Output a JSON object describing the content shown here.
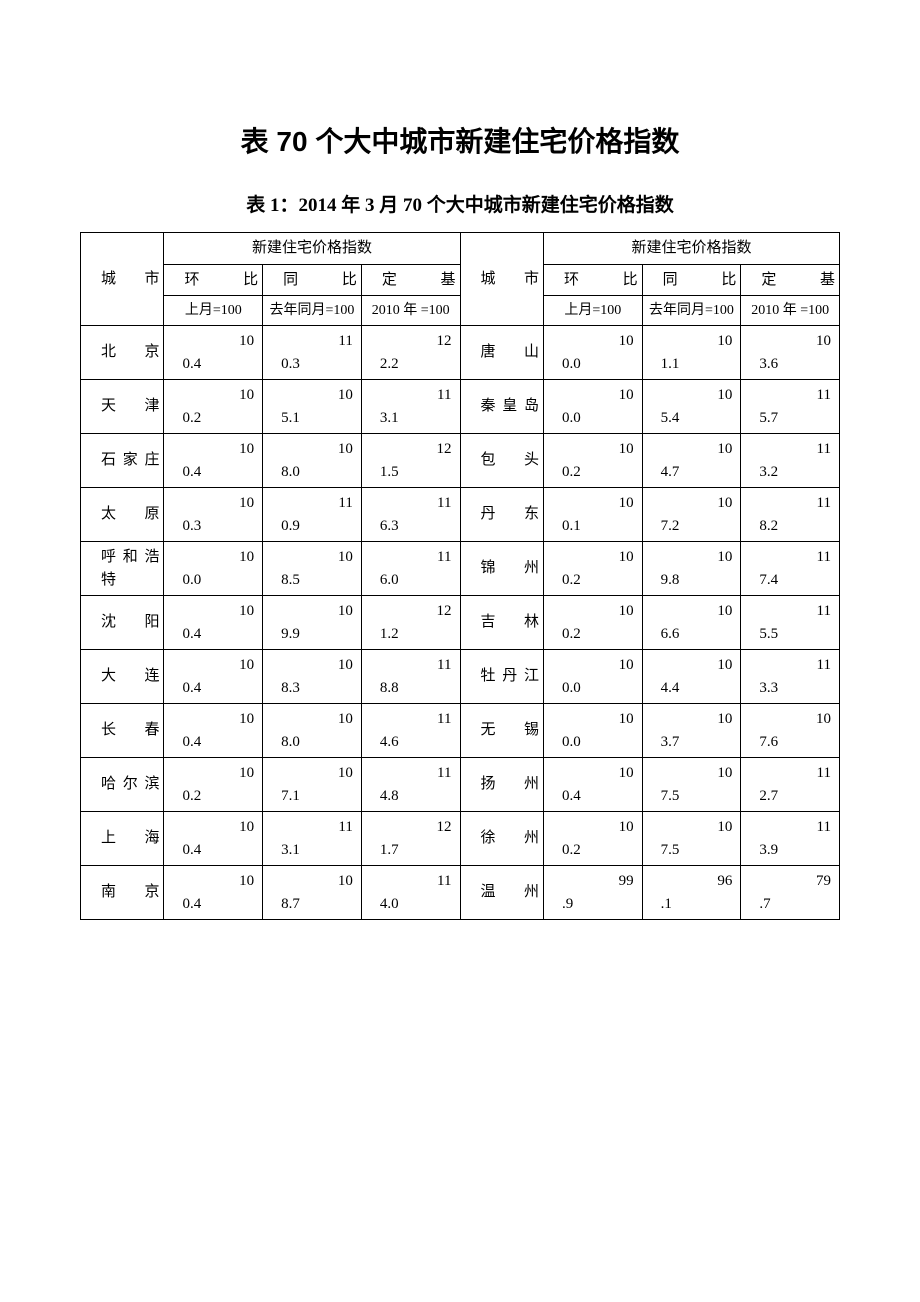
{
  "main_title": "表 70 个大中城市新建住宅价格指数",
  "sub_title": "表 1：2014 年 3 月 70 个大中城市新建住宅价格指数",
  "header": {
    "city_label": "城市",
    "group_label": "新建住宅价格指数",
    "col1": "环比",
    "col2": "同比",
    "col3": "定基",
    "sub1": "上月=100",
    "sub2": "去年同月=100",
    "sub3": "2010 年 =100"
  },
  "rows": [
    {
      "c1": "北 京",
      "v1_a": "10",
      "v1_b": "0.4",
      "v2_a": "11",
      "v2_b": "0.3",
      "v3_a": "12",
      "v3_b": "2.2",
      "c2": "唐 山",
      "v4_a": "10",
      "v4_b": "0.0",
      "v5_a": "10",
      "v5_b": "1.1",
      "v6_a": "10",
      "v6_b": "3.6"
    },
    {
      "c1": "天 津",
      "v1_a": "10",
      "v1_b": "0.2",
      "v2_a": "10",
      "v2_b": "5.1",
      "v3_a": "11",
      "v3_b": "3.1",
      "c2": "秦 皇 岛",
      "v4_a": "10",
      "v4_b": "0.0",
      "v5_a": "10",
      "v5_b": "5.4",
      "v6_a": "11",
      "v6_b": "5.7"
    },
    {
      "c1": "石 家 庄",
      "v1_a": "10",
      "v1_b": "0.4",
      "v2_a": "10",
      "v2_b": "8.0",
      "v3_a": "12",
      "v3_b": "1.5",
      "c2": "包 头",
      "v4_a": "10",
      "v4_b": "0.2",
      "v5_a": "10",
      "v5_b": "4.7",
      "v6_a": "11",
      "v6_b": "3.2"
    },
    {
      "c1": "太 原",
      "v1_a": "10",
      "v1_b": "0.3",
      "v2_a": "11",
      "v2_b": "0.9",
      "v3_a": "11",
      "v3_b": "6.3",
      "c2": "丹 东",
      "v4_a": "10",
      "v4_b": "0.1",
      "v5_a": "10",
      "v5_b": "7.2",
      "v6_a": "11",
      "v6_b": "8.2"
    },
    {
      "c1": "呼 和 浩 特",
      "v1_a": "10",
      "v1_b": "0.0",
      "v2_a": "10",
      "v2_b": "8.5",
      "v3_a": "11",
      "v3_b": "6.0",
      "c2": "锦 州",
      "v4_a": "10",
      "v4_b": "0.2",
      "v5_a": "10",
      "v5_b": "9.8",
      "v6_a": "11",
      "v6_b": "7.4"
    },
    {
      "c1": "沈 阳",
      "v1_a": "10",
      "v1_b": "0.4",
      "v2_a": "10",
      "v2_b": "9.9",
      "v3_a": "12",
      "v3_b": "1.2",
      "c2": "吉 林",
      "v4_a": "10",
      "v4_b": "0.2",
      "v5_a": "10",
      "v5_b": "6.6",
      "v6_a": "11",
      "v6_b": "5.5"
    },
    {
      "c1": "大 连",
      "v1_a": "10",
      "v1_b": "0.4",
      "v2_a": "10",
      "v2_b": "8.3",
      "v3_a": "11",
      "v3_b": "8.8",
      "c2": "牡 丹 江",
      "v4_a": "10",
      "v4_b": "0.0",
      "v5_a": "10",
      "v5_b": "4.4",
      "v6_a": "11",
      "v6_b": "3.3"
    },
    {
      "c1": "长 春",
      "v1_a": "10",
      "v1_b": "0.4",
      "v2_a": "10",
      "v2_b": "8.0",
      "v3_a": "11",
      "v3_b": "4.6",
      "c2": "无 锡",
      "v4_a": "10",
      "v4_b": "0.0",
      "v5_a": "10",
      "v5_b": "3.7",
      "v6_a": "10",
      "v6_b": "7.6"
    },
    {
      "c1": "哈 尔 滨",
      "v1_a": "10",
      "v1_b": "0.2",
      "v2_a": "10",
      "v2_b": "7.1",
      "v3_a": "11",
      "v3_b": "4.8",
      "c2": "扬 州",
      "v4_a": "10",
      "v4_b": "0.4",
      "v5_a": "10",
      "v5_b": "7.5",
      "v6_a": "11",
      "v6_b": "2.7"
    },
    {
      "c1": "上 海",
      "v1_a": "10",
      "v1_b": "0.4",
      "v2_a": "11",
      "v2_b": "3.1",
      "v3_a": "12",
      "v3_b": "1.7",
      "c2": "徐 州",
      "v4_a": "10",
      "v4_b": "0.2",
      "v5_a": "10",
      "v5_b": "7.5",
      "v6_a": "11",
      "v6_b": "3.9"
    },
    {
      "c1": "南 京",
      "v1_a": "10",
      "v1_b": "0.4",
      "v2_a": "10",
      "v2_b": "8.7",
      "v3_a": "11",
      "v3_b": "4.0",
      "c2": "温 州",
      "v4_a": "99",
      "v4_b": ".9",
      "v5_a": "96",
      "v5_b": ".1",
      "v6_a": "79",
      "v6_b": ".7"
    }
  ],
  "colors": {
    "border": "#000000",
    "background": "#ffffff",
    "text": "#000000"
  }
}
